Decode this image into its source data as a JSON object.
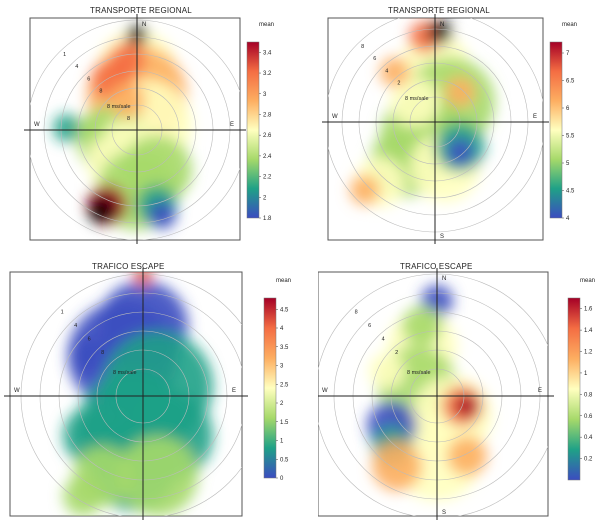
{
  "chart_data": [
    {
      "type": "heatmap",
      "subtype": "polar-plot",
      "title": "TRANSPORTE REGIONAL",
      "legend_title": "mean",
      "legend_placement": "right",
      "color_scale": [
        "#3b4cc0",
        "#1fa187",
        "#a6d96a",
        "#ffffbf",
        "#fdae61",
        "#f46d43",
        "#a50026"
      ],
      "colorbar_range": [
        1.8,
        3.5
      ],
      "colorbar_ticks": [
        "3.4",
        "3.2",
        "3",
        "2.8",
        "2.6",
        "2.4",
        "2.2",
        "2",
        "1.8"
      ],
      "directions": [
        "N",
        "W",
        "E"
      ],
      "ring_labels": [
        "1",
        "4",
        "6",
        "8"
      ],
      "annotations": [
        "8 ms/sale",
        "8"
      ]
    },
    {
      "type": "heatmap",
      "subtype": "polar-plot",
      "title": "TRANSPORTE REGIONAL",
      "legend_title": "mean",
      "legend_placement": "right",
      "color_scale": [
        "#3b4cc0",
        "#1fa187",
        "#a6d96a",
        "#ffffbf",
        "#fdae61",
        "#f46d43",
        "#a50026"
      ],
      "colorbar_range": [
        4,
        7.2
      ],
      "colorbar_ticks": [
        "7",
        "6.5",
        "6",
        "5.5",
        "5",
        "4.5",
        "4"
      ],
      "directions": [
        "N",
        "W",
        "E",
        "S"
      ],
      "ring_labels": [
        "8",
        "6",
        "4",
        "2"
      ],
      "annotations": [
        "8 ms/sale"
      ]
    },
    {
      "type": "heatmap",
      "subtype": "polar-plot",
      "title": "TRAFICO ESCAPE",
      "legend_title": "mean",
      "legend_placement": "right",
      "color_scale": [
        "#3b4cc0",
        "#1fa187",
        "#a6d96a",
        "#ffffbf",
        "#fdae61",
        "#f46d43",
        "#a50026"
      ],
      "colorbar_range": [
        0,
        4.8
      ],
      "colorbar_ticks": [
        "4.5",
        "4",
        "3.5",
        "3",
        "2.5",
        "2",
        "1.5",
        "1",
        "0.5",
        "0"
      ],
      "directions": [
        "W",
        "E"
      ],
      "ring_labels": [
        "1",
        "4",
        "6",
        "8"
      ],
      "annotations": [
        "8 ms/sale"
      ]
    },
    {
      "type": "heatmap",
      "subtype": "polar-plot",
      "title": "TRAFICO ESCAPE",
      "legend_title": "mean",
      "legend_placement": "right",
      "color_scale": [
        "#3b4cc0",
        "#1fa187",
        "#a6d96a",
        "#ffffbf",
        "#fdae61",
        "#f46d43",
        "#a50026"
      ],
      "colorbar_range": [
        0,
        1.7
      ],
      "colorbar_ticks": [
        "1.6",
        "1.4",
        "1.2",
        "1",
        "0.8",
        "0.6",
        "0.4",
        "0.2"
      ],
      "directions": [
        "N",
        "W",
        "E",
        "S"
      ],
      "ring_labels": [
        "8",
        "6",
        "4",
        "2"
      ],
      "annotations": [
        "8 ms/sale"
      ]
    }
  ]
}
